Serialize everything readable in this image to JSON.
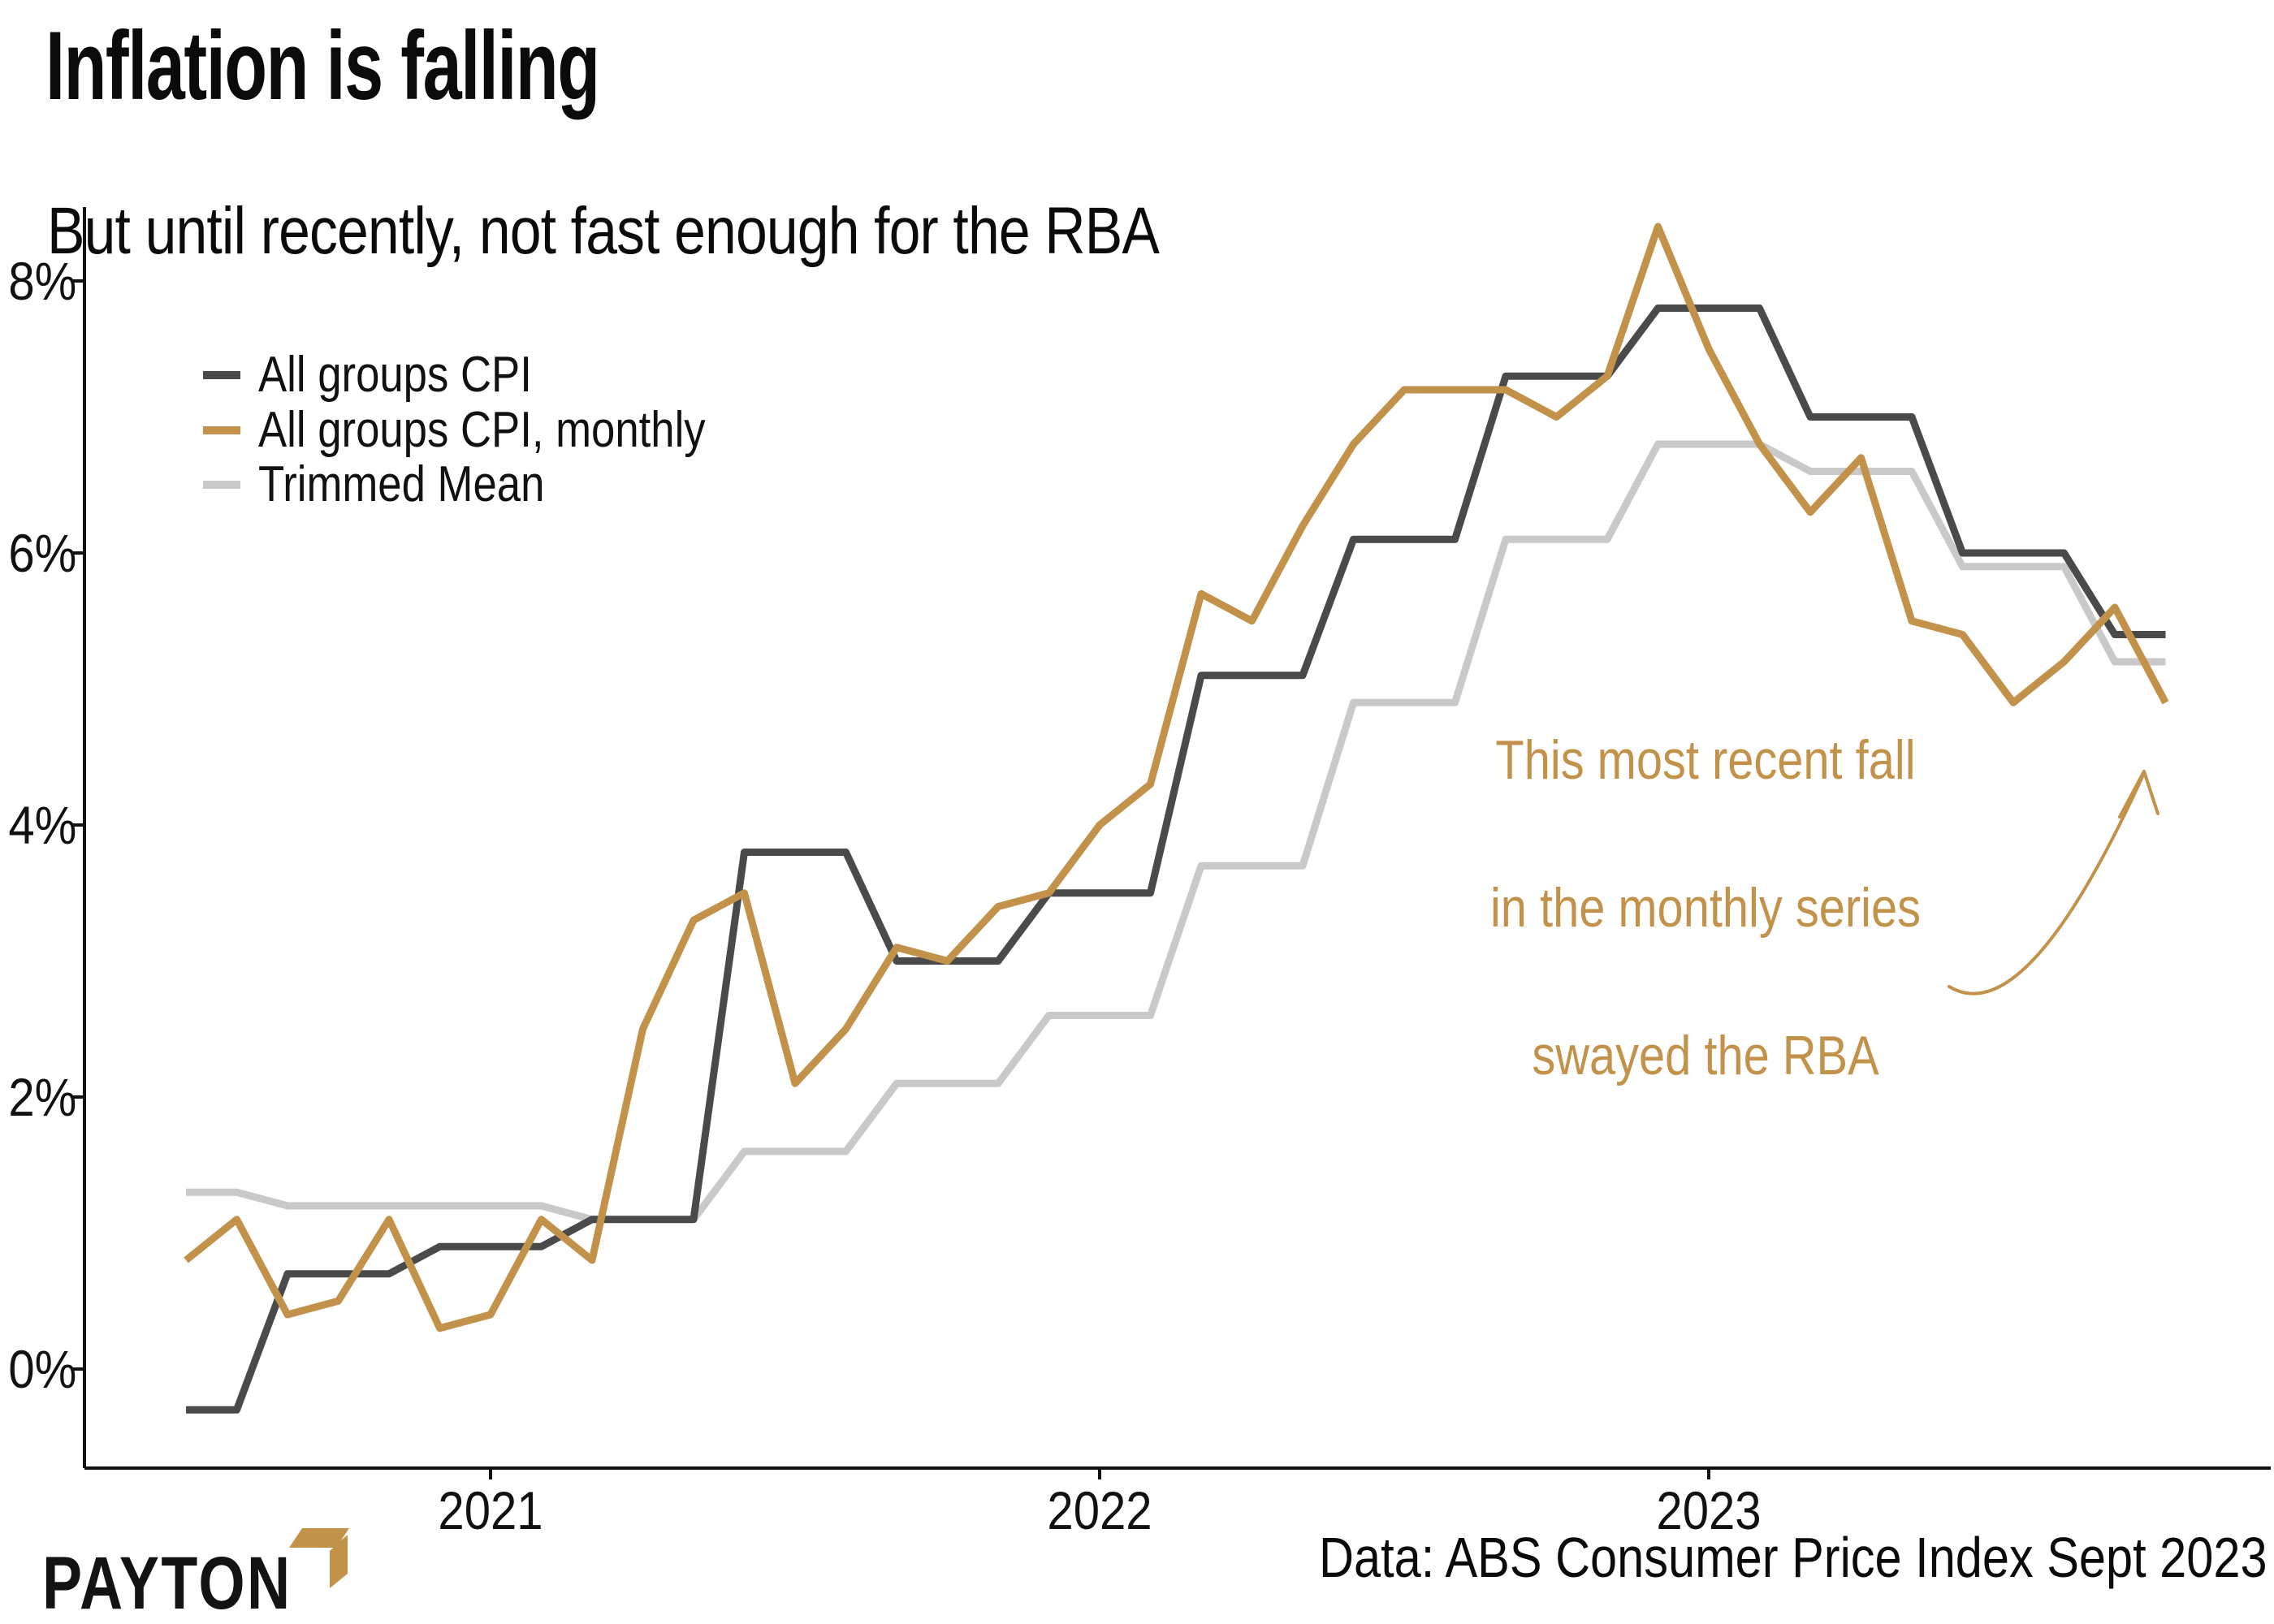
{
  "title": "Inflation is falling",
  "subtitle": "But until recently, not fast enough for the RBA",
  "source_note": "Data: ABS Consumer Price Index Sept 2023",
  "logo": {
    "text": "PAYTON"
  },
  "colors": {
    "cpi_quarterly": "#4A4A4A",
    "cpi_monthly": "#C2924A",
    "trimmed_mean": "#C9C9C9",
    "annotation": "#C2924A",
    "axis": "#111111",
    "background": "#FFFFFF"
  },
  "legend": [
    {
      "series": "cpi_quarterly",
      "label": "All groups CPI"
    },
    {
      "series": "cpi_monthly",
      "label": "All groups CPI, monthly"
    },
    {
      "series": "trimmed_mean",
      "label": "Trimmed Mean"
    }
  ],
  "annotation": {
    "lines": [
      "This most recent fall",
      "in the monthly series",
      "swayed the RBA"
    ]
  },
  "chart_data": {
    "type": "line",
    "title": "Inflation is falling",
    "xlabel": "",
    "ylabel": "",
    "grid": false,
    "legend_position": "upper-left-inside",
    "ylim": [
      -1,
      9
    ],
    "y_ticks": [
      {
        "value": 0,
        "label": "0%"
      },
      {
        "value": 2,
        "label": "2%"
      },
      {
        "value": 4,
        "label": "4%"
      },
      {
        "value": 6,
        "label": "6%"
      },
      {
        "value": 8,
        "label": "8%"
      }
    ],
    "x_ticks": [
      {
        "label": "2021",
        "month_index": 6
      },
      {
        "label": "2022",
        "month_index": 18
      },
      {
        "label": "2023",
        "month_index": 30
      }
    ],
    "months": [
      "2020-07",
      "2020-08",
      "2020-09",
      "2020-10",
      "2020-11",
      "2020-12",
      "2021-01",
      "2021-02",
      "2021-03",
      "2021-04",
      "2021-05",
      "2021-06",
      "2021-07",
      "2021-08",
      "2021-09",
      "2021-10",
      "2021-11",
      "2021-12",
      "2022-01",
      "2022-02",
      "2022-03",
      "2022-04",
      "2022-05",
      "2022-06",
      "2022-07",
      "2022-08",
      "2022-09",
      "2022-10",
      "2022-11",
      "2022-12",
      "2023-01",
      "2023-02",
      "2023-03",
      "2023-04",
      "2023-05",
      "2023-06",
      "2023-07",
      "2023-08",
      "2023-09",
      "2023-10"
    ],
    "series": [
      {
        "key": "cpi_quarterly",
        "name": "All groups CPI",
        "values": [
          -0.3,
          -0.3,
          0.7,
          0.7,
          0.7,
          0.9,
          0.9,
          0.9,
          1.1,
          1.1,
          1.1,
          3.8,
          3.8,
          3.8,
          3.0,
          3.0,
          3.0,
          3.5,
          3.5,
          3.5,
          5.1,
          5.1,
          5.1,
          6.1,
          6.1,
          6.1,
          7.3,
          7.3,
          7.3,
          7.8,
          7.8,
          7.8,
          7.0,
          7.0,
          7.0,
          6.0,
          6.0,
          6.0,
          5.4,
          5.4
        ]
      },
      {
        "key": "cpi_monthly",
        "name": "All groups CPI, monthly",
        "values": [
          0.8,
          1.1,
          0.4,
          0.5,
          1.1,
          0.3,
          0.4,
          1.1,
          0.8,
          2.5,
          3.3,
          3.5,
          2.1,
          2.5,
          3.1,
          3.0,
          3.4,
          3.5,
          4.0,
          4.3,
          5.7,
          5.5,
          6.2,
          6.8,
          7.2,
          7.2,
          7.2,
          7.0,
          7.3,
          8.4,
          7.5,
          6.8,
          6.3,
          6.7,
          5.5,
          5.4,
          4.9,
          5.2,
          5.6,
          4.9
        ]
      },
      {
        "key": "trimmed_mean",
        "name": "Trimmed Mean",
        "values": [
          1.3,
          1.3,
          1.2,
          1.2,
          1.2,
          1.2,
          1.2,
          1.2,
          1.1,
          1.1,
          1.1,
          1.6,
          1.6,
          1.6,
          2.1,
          2.1,
          2.1,
          2.6,
          2.6,
          2.6,
          3.7,
          3.7,
          3.7,
          4.9,
          4.9,
          4.9,
          6.1,
          6.1,
          6.1,
          6.8,
          6.8,
          6.8,
          6.6,
          6.6,
          6.6,
          5.9,
          5.9,
          5.9,
          5.2,
          5.2
        ]
      }
    ]
  }
}
